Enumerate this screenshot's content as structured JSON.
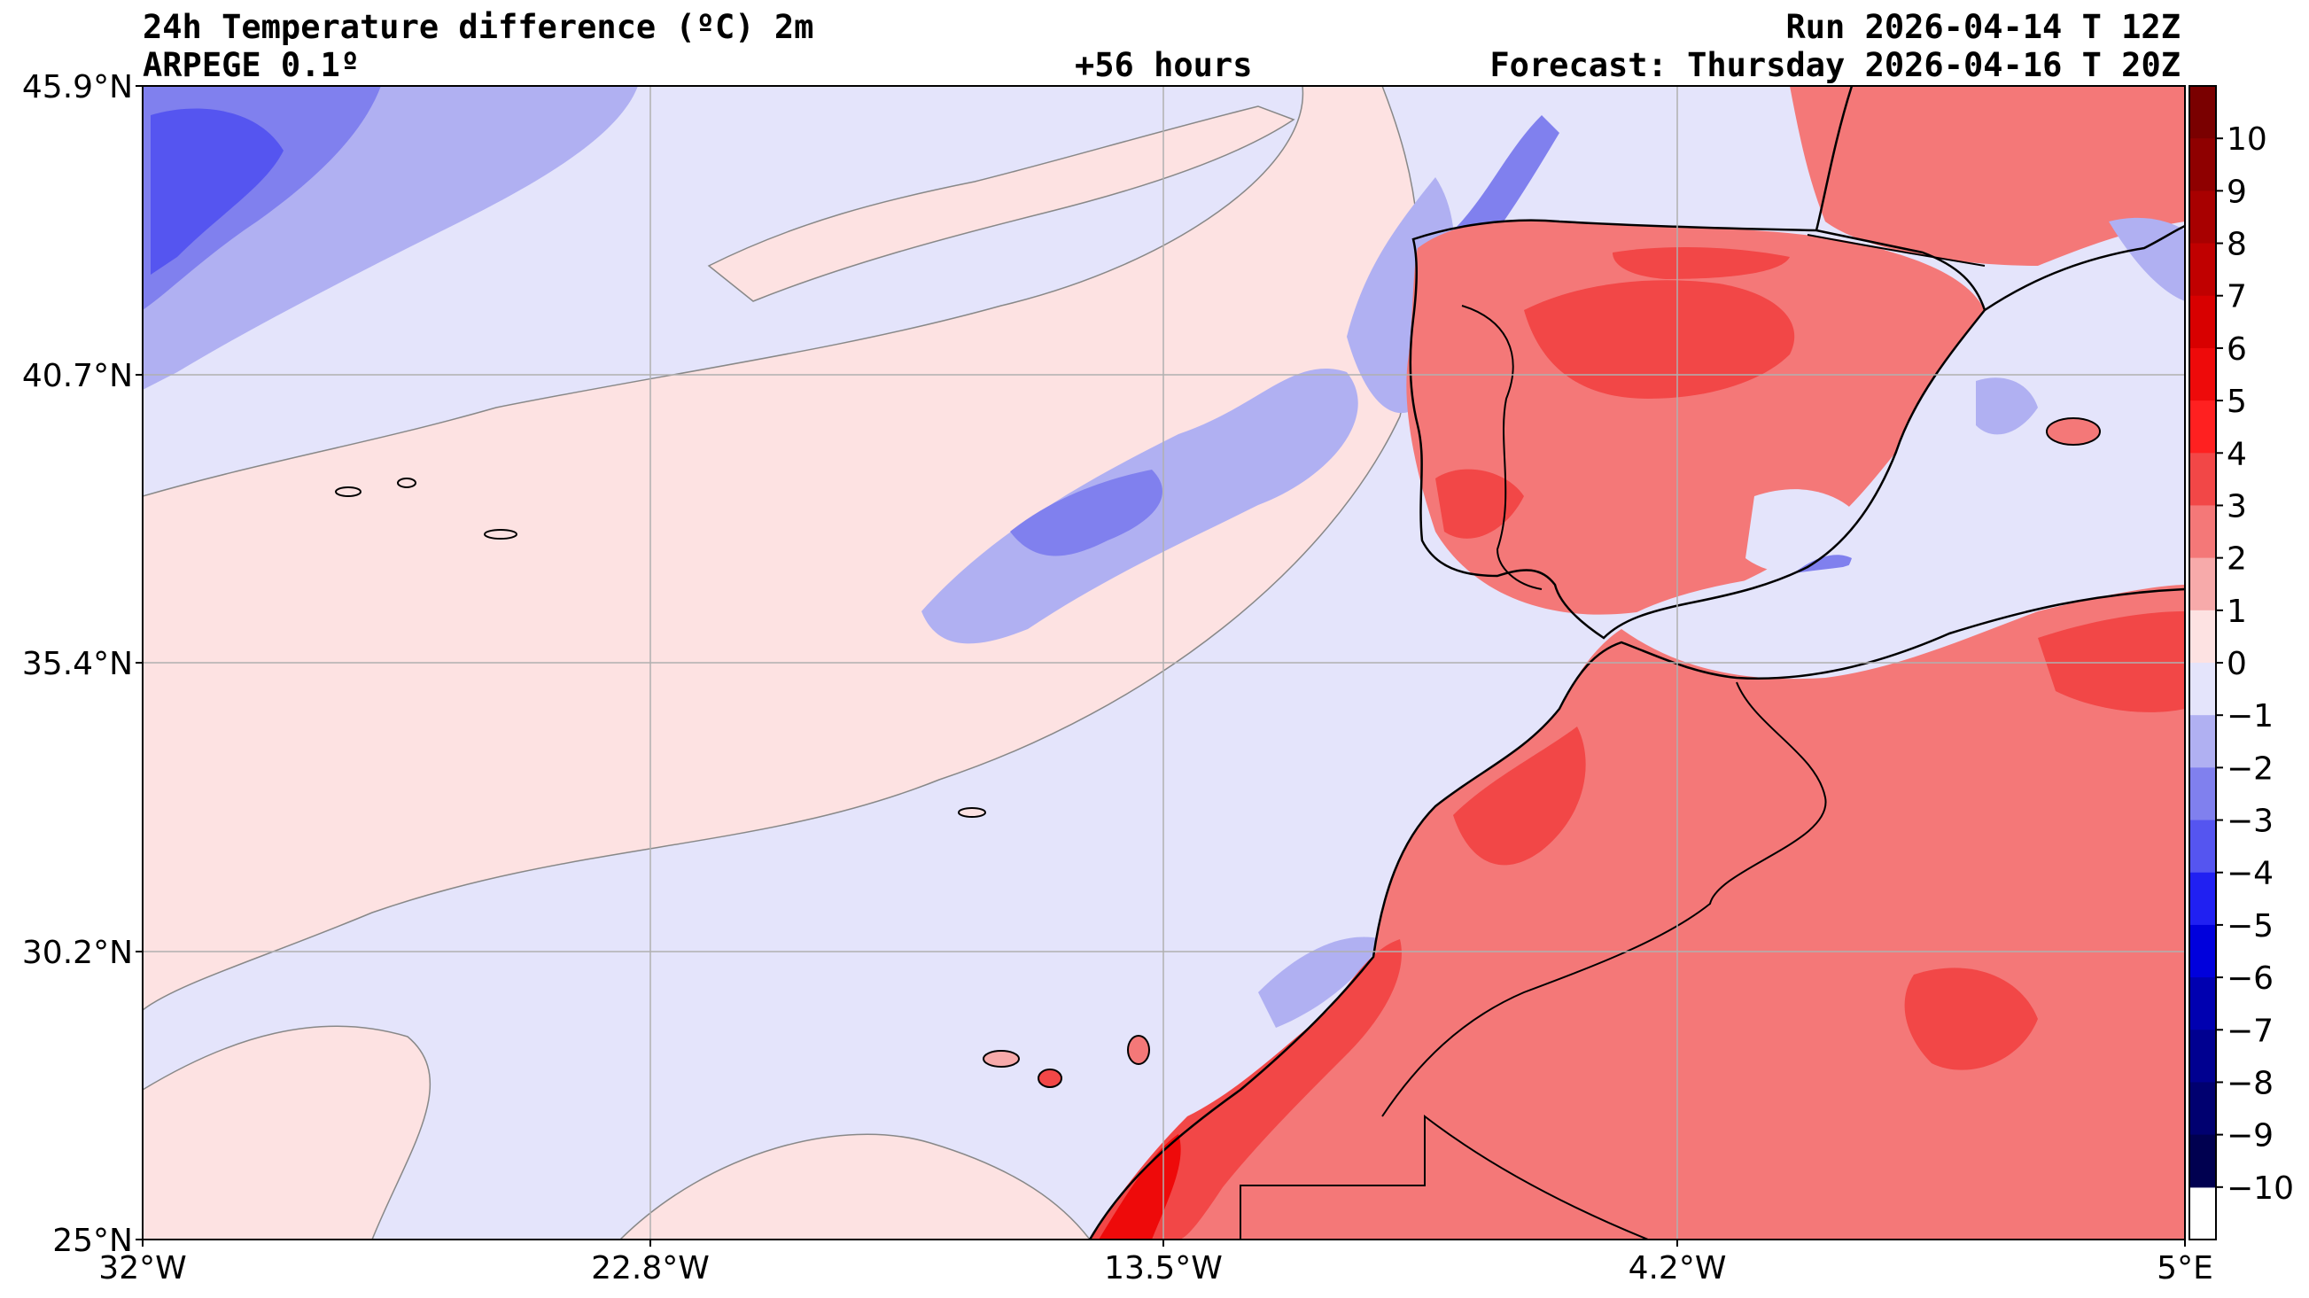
{
  "header": {
    "title": "24h Temperature difference (ºC) 2m",
    "model": "ARPEGE 0.1º",
    "lead_time": "+56 hours",
    "run": "Run 2026-04-14 T 12Z",
    "forecast": "Forecast: Thursday 2026-04-16 T 20Z"
  },
  "axes": {
    "lon_ticks": [
      "32°W",
      "22.8°W",
      "13.5°W",
      "4.2°W",
      "5°E"
    ],
    "lat_ticks": [
      "45.9°N",
      "40.7°N",
      "35.4°N",
      "30.2°N",
      "25°N"
    ]
  },
  "colorbar": {
    "labels": [
      "10",
      "9",
      "8",
      "7",
      "6",
      "5",
      "4",
      "3",
      "2",
      "1",
      "0",
      "−1",
      "−2",
      "−3",
      "−4",
      "−5",
      "−6",
      "−7",
      "−8",
      "−9",
      "−10"
    ],
    "colors": [
      "#7a0000",
      "#8f0000",
      "#a80000",
      "#c00000",
      "#d80000",
      "#ee0a0a",
      "#ff2020",
      "#f24747",
      "#f47878",
      "#f7aaaa",
      "#fde2e2",
      "#e4e4fb",
      "#b0b0f2",
      "#8080ee",
      "#5555f0",
      "#2020f2",
      "#0000dc",
      "#0000b0",
      "#000090",
      "#000070",
      "#000050"
    ]
  },
  "palette": {
    "sea_neutral": "#e4e4fb",
    "warm_light": "#fde2e2",
    "warm_mid": "#f7aaaa",
    "warm_strong": "#f47878",
    "warm_hot": "#f24747",
    "cold_light": "#b0b0f2",
    "cold_mid": "#8080ee",
    "cold_strong": "#5555f0",
    "coastline": "#000000",
    "gridline": "#b0b0b0"
  }
}
